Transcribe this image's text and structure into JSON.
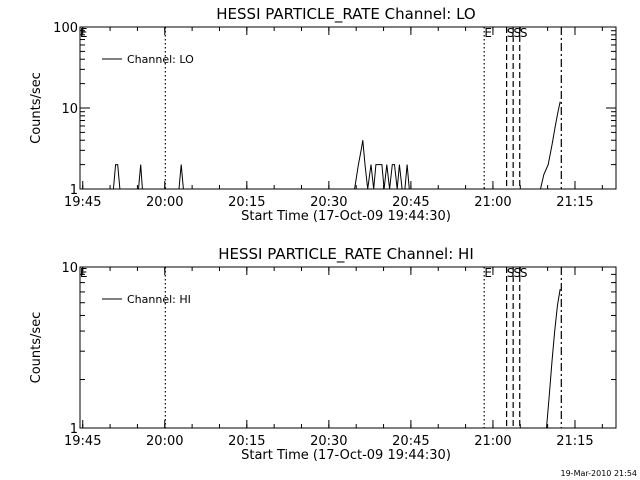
{
  "footer": {
    "timestamp": "19-Mar-2010 21:54"
  },
  "chart_data": [
    {
      "type": "line",
      "title": "HESSI PARTICLE_RATE Channel: LO",
      "xlabel": "Start Time (17-Oct-09 19:44:30)",
      "ylabel": "Counts/sec",
      "x_units": "minutes after 19:44:30",
      "xlim": [
        0,
        98
      ],
      "x_ticks": [
        {
          "value": 0.5,
          "label": "19:45"
        },
        {
          "value": 15.5,
          "label": "20:00"
        },
        {
          "value": 30.5,
          "label": "20:15"
        },
        {
          "value": 45.5,
          "label": "20:30"
        },
        {
          "value": 60.5,
          "label": "20:45"
        },
        {
          "value": 75.5,
          "label": "21:00"
        },
        {
          "value": 90.5,
          "label": "21:15"
        }
      ],
      "yscale": "log",
      "ylim": [
        1,
        100
      ],
      "y_ticks": [
        {
          "value": 1,
          "label": "1"
        },
        {
          "value": 10,
          "label": "10"
        },
        {
          "value": 100,
          "label": "100"
        }
      ],
      "legend": {
        "position": "top-left",
        "entries": [
          "Channel: LO"
        ]
      },
      "markers": [
        {
          "x": 0.3,
          "label": "E",
          "style": "none"
        },
        {
          "x": 15.6,
          "label": "",
          "style": "dotted"
        },
        {
          "x": 73.9,
          "label": "E",
          "style": "dotted"
        },
        {
          "x": 78.0,
          "label": "S",
          "style": "dashed"
        },
        {
          "x": 79.2,
          "label": "S",
          "style": "dashed"
        },
        {
          "x": 80.4,
          "label": "S",
          "style": "dashed"
        },
        {
          "x": 88.0,
          "label": "",
          "style": "dashdot"
        }
      ],
      "series": [
        {
          "values": [
            [
              0,
              1
            ],
            [
              6.1,
              1
            ],
            [
              6.5,
              2
            ],
            [
              6.9,
              2
            ],
            [
              7.3,
              1
            ],
            [
              10.7,
              1
            ],
            [
              11.1,
              2
            ],
            [
              11.4,
              1
            ],
            [
              18.1,
              1
            ],
            [
              18.5,
              2
            ],
            [
              18.9,
              1
            ],
            [
              50.2,
              1
            ],
            [
              50.9,
              2
            ],
            [
              51.4,
              3
            ],
            [
              51.7,
              4
            ],
            [
              52.1,
              2
            ],
            [
              52.6,
              1
            ],
            [
              53.2,
              2
            ],
            [
              53.7,
              1
            ],
            [
              54.1,
              2
            ],
            [
              55.2,
              2
            ],
            [
              55.6,
              1
            ],
            [
              56.1,
              2
            ],
            [
              56.6,
              1
            ],
            [
              57.1,
              2
            ],
            [
              57.5,
              2
            ],
            [
              58,
              1
            ],
            [
              58.4,
              2
            ],
            [
              58.9,
              1
            ],
            [
              59.4,
              1
            ],
            [
              59.8,
              2
            ],
            [
              60.2,
              1
            ],
            [
              84.2,
              1
            ],
            [
              84.8,
              1.5
            ],
            [
              85.6,
              2
            ],
            [
              86.3,
              3.5
            ],
            [
              86.9,
              6
            ],
            [
              87.4,
              9
            ],
            [
              87.8,
              12
            ]
          ]
        }
      ]
    },
    {
      "type": "line",
      "title": "HESSI PARTICLE_RATE Channel: HI",
      "xlabel": "Start Time (17-Oct-09 19:44:30)",
      "ylabel": "Counts/sec",
      "x_units": "minutes after 19:44:30",
      "xlim": [
        0,
        98
      ],
      "x_ticks": [
        {
          "value": 0.5,
          "label": "19:45"
        },
        {
          "value": 15.5,
          "label": "20:00"
        },
        {
          "value": 30.5,
          "label": "20:15"
        },
        {
          "value": 45.5,
          "label": "20:30"
        },
        {
          "value": 60.5,
          "label": "20:45"
        },
        {
          "value": 75.5,
          "label": "21:00"
        },
        {
          "value": 90.5,
          "label": "21:15"
        }
      ],
      "yscale": "log",
      "ylim": [
        1,
        10
      ],
      "y_ticks": [
        {
          "value": 1,
          "label": "1"
        },
        {
          "value": 10,
          "label": "10"
        }
      ],
      "legend": {
        "position": "top-left",
        "entries": [
          "Channel: HI"
        ]
      },
      "markers": [
        {
          "x": 0.3,
          "label": "E",
          "style": "none"
        },
        {
          "x": 15.6,
          "label": "",
          "style": "dotted"
        },
        {
          "x": 73.9,
          "label": "E",
          "style": "dotted"
        },
        {
          "x": 78.0,
          "label": "S",
          "style": "dashed"
        },
        {
          "x": 79.2,
          "label": "S",
          "style": "dashed"
        },
        {
          "x": 80.4,
          "label": "S",
          "style": "dashed"
        },
        {
          "x": 88.0,
          "label": "",
          "style": "dashdot"
        }
      ],
      "series": [
        {
          "values": [
            [
              85.3,
              1
            ],
            [
              85.8,
              1.6
            ],
            [
              86.3,
              2.6
            ],
            [
              86.8,
              4
            ],
            [
              87.3,
              5.8
            ],
            [
              87.8,
              7.3
            ]
          ]
        }
      ]
    }
  ]
}
